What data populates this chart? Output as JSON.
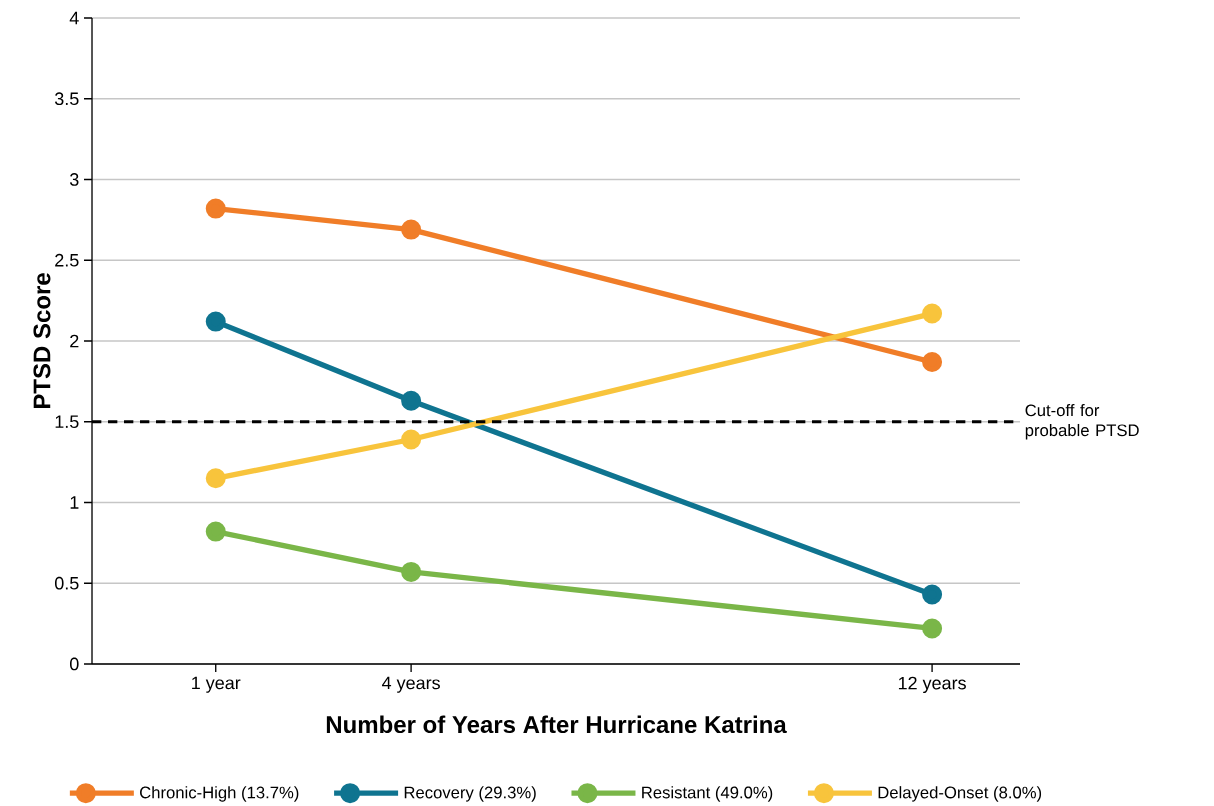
{
  "chart_data": {
    "type": "line",
    "xlabel": "Number of Years After Hurricane Katrina",
    "ylabel": "PTSD Score",
    "x": [
      1,
      4,
      12
    ],
    "xlim": [
      -0.9,
      13.35
    ],
    "xticks": [
      {
        "value": 1,
        "label": "1 year"
      },
      {
        "value": 4,
        "label": "4 years"
      },
      {
        "value": 12,
        "label": "12 years"
      }
    ],
    "ylim": [
      0,
      4
    ],
    "yticks": [
      0,
      0.5,
      1,
      1.5,
      2,
      2.5,
      3,
      3.5,
      4
    ],
    "grid": "y",
    "legend": "bottom",
    "marker": "circle",
    "line_style": "solid",
    "series": [
      {
        "name": "Chronic-High (13.7%)",
        "color": "#f07d28",
        "values": [
          2.82,
          2.69,
          1.87
        ]
      },
      {
        "name": "Recovery (29.3%)",
        "color": "#0f7490",
        "values": [
          2.12,
          1.63,
          0.43
        ]
      },
      {
        "name": "Resistant (49.0%)",
        "color": "#7ab648",
        "values": [
          0.82,
          0.57,
          0.22
        ]
      },
      {
        "name": "Delayed-Onset (8.0%)",
        "color": "#f8c43c",
        "values": [
          1.15,
          1.39,
          2.17
        ]
      }
    ],
    "ref_lines": [
      {
        "axis": "y",
        "value": 1.5,
        "label": "Cut-off for probable PTSD",
        "color": "#000000",
        "line_style": "dashed"
      }
    ]
  }
}
